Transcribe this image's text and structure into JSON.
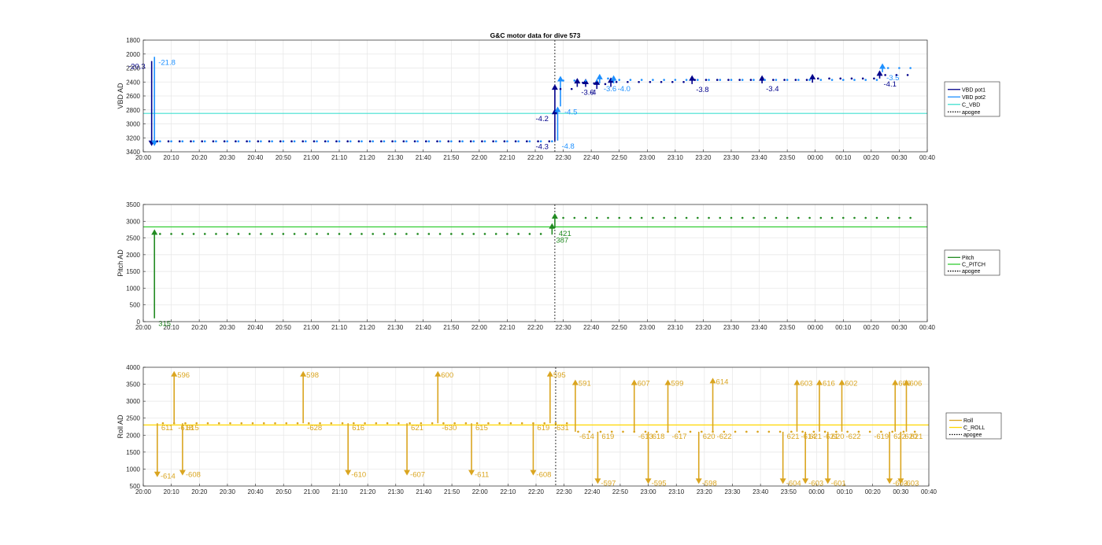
{
  "chart_data": [
    {
      "type": "line",
      "title": "G&C motor data for dive 573",
      "ylabel": "VBD AD",
      "xlim": [
        "20:00",
        "00:40"
      ],
      "ylim": [
        1800,
        3400
      ],
      "y_reversed": true,
      "xticks": [
        "20:00",
        "20:10",
        "20:20",
        "20:30",
        "20:40",
        "20:50",
        "21:00",
        "21:10",
        "21:20",
        "21:30",
        "21:40",
        "21:50",
        "22:00",
        "22:10",
        "22:20",
        "22:30",
        "22:40",
        "22:50",
        "23:00",
        "23:10",
        "23:20",
        "23:30",
        "23:40",
        "23:50",
        "00:00",
        "00:10",
        "00:20",
        "00:30",
        "00:40"
      ],
      "yticks": [
        1800,
        2000,
        2200,
        2400,
        2600,
        2800,
        3000,
        3200,
        3400
      ],
      "grid": true,
      "legend_position": "right",
      "apogee": "22:27",
      "series": [
        {
          "name": "VBD pot1",
          "color": "#00008b",
          "moves": [
            {
              "t": "20:03",
              "from": 2100,
              "to": 3250,
              "label": "-20.3",
              "label_side": "left"
            },
            {
              "t": "22:27",
              "from": 3250,
              "to": 2850,
              "label": "-4.3",
              "label_side": "left"
            },
            {
              "t": "22:27",
              "from": 2850,
              "to": 2500,
              "label": "-4.2",
              "label_side": "left"
            },
            {
              "t": "22:35",
              "from": 2470,
              "to": 2410,
              "label": "-3.6",
              "label_side": "right"
            },
            {
              "t": "22:38",
              "from": 2470,
              "to": 2420,
              "label": "-4",
              "label_side": "right"
            },
            {
              "t": "22:42",
              "from": 2500,
              "to": 2430,
              "label": "",
              "label_side": "right"
            },
            {
              "t": "22:47",
              "from": 2470,
              "to": 2400,
              "label": "",
              "label_side": "right"
            },
            {
              "t": "23:16",
              "from": 2430,
              "to": 2370,
              "label": "-3.8",
              "label_side": "right"
            },
            {
              "t": "23:41",
              "from": 2420,
              "to": 2370,
              "label": "-3.4",
              "label_side": "right"
            },
            {
              "t": "23:59",
              "from": 2410,
              "to": 2350,
              "label": "",
              "label_side": "right"
            },
            {
              "t": "00:23",
              "from": 2350,
              "to": 2300,
              "label": "-4.1",
              "label_side": "right"
            }
          ]
        },
        {
          "name": "VBD pot2",
          "color": "#1e90ff",
          "moves": [
            {
              "t": "20:04",
              "from": 2040,
              "to": 3250,
              "label": "-21.8",
              "label_side": "right"
            },
            {
              "t": "22:28",
              "from": 3240,
              "to": 2820,
              "label": "-4.8",
              "label_side": "right"
            },
            {
              "t": "22:29",
              "from": 2750,
              "to": 2380,
              "label": "-4.5",
              "label_side": "right"
            },
            {
              "t": "22:43",
              "from": 2420,
              "to": 2350,
              "label": "-3.6",
              "label_side": "right"
            },
            {
              "t": "22:48",
              "from": 2420,
              "to": 2370,
              "label": "-4.0",
              "label_side": "right"
            },
            {
              "t": "00:24",
              "from": 2260,
              "to": 2200,
              "label": "-3.5",
              "label_side": "right"
            }
          ]
        },
        {
          "name": "C_VBD",
          "color": "#40e0d0",
          "value": 2850
        },
        {
          "name": "apogee",
          "color": "#000000",
          "style": "dotted"
        }
      ]
    },
    {
      "type": "line",
      "ylabel": "Pitch AD",
      "xlim": [
        "20:00",
        "00:40"
      ],
      "ylim": [
        0,
        3500
      ],
      "xticks": [
        "20:00",
        "20:10",
        "20:20",
        "20:30",
        "20:40",
        "20:50",
        "21:00",
        "21:10",
        "21:20",
        "21:30",
        "21:40",
        "21:50",
        "22:00",
        "22:10",
        "22:20",
        "22:30",
        "22:40",
        "22:50",
        "23:00",
        "23:10",
        "23:20",
        "23:30",
        "23:40",
        "23:50",
        "00:00",
        "00:10",
        "00:20",
        "00:30",
        "00:40"
      ],
      "yticks": [
        0,
        500,
        1000,
        1500,
        2000,
        2500,
        3000,
        3500
      ],
      "grid": true,
      "legend_position": "right",
      "apogee": "22:27",
      "series": [
        {
          "name": "Pitch",
          "color": "#228b22",
          "moves": [
            {
              "t": "20:04",
              "from": 100,
              "to": 2620,
              "label": "315",
              "label_side": "right"
            },
            {
              "t": "22:26",
              "from": 2600,
              "to": 2800,
              "label": "387",
              "label_side": "right"
            },
            {
              "t": "22:27",
              "from": 2800,
              "to": 3100,
              "label": "421",
              "label_side": "right"
            }
          ]
        },
        {
          "name": "C_PITCH",
          "color": "#32cd32",
          "value": 2830
        },
        {
          "name": "apogee",
          "color": "#000000",
          "style": "dotted"
        }
      ]
    },
    {
      "type": "line",
      "ylabel": "Roll AD",
      "xlim": [
        "20:00",
        "00:40"
      ],
      "ylim": [
        500,
        4000
      ],
      "xticks": [
        "20:00",
        "20:10",
        "20:20",
        "20:30",
        "20:40",
        "20:50",
        "21:00",
        "21:10",
        "21:20",
        "21:30",
        "21:40",
        "21:50",
        "22:00",
        "22:10",
        "22:20",
        "22:30",
        "22:40",
        "22:50",
        "23:00",
        "23:10",
        "23:20",
        "23:30",
        "23:40",
        "23:50",
        "00:00",
        "00:10",
        "00:20",
        "00:30",
        "00:40"
      ],
      "yticks": [
        500,
        1000,
        1500,
        2000,
        2500,
        3000,
        3500,
        4000
      ],
      "grid": true,
      "legend_position": "right",
      "apogee": "22:27",
      "series": [
        {
          "name": "Roll",
          "color": "#daa520",
          "moves": [
            {
              "t": "20:05",
              "from": 2350,
              "to": 900,
              "label": "611",
              "label_side": "right",
              "end_label": "-614"
            },
            {
              "t": "20:11",
              "from": 2350,
              "to": 3750,
              "label": "-618",
              "label_side": "right",
              "end_label": "596"
            },
            {
              "t": "20:14",
              "from": 2350,
              "to": 950,
              "label": "615",
              "label_side": "right",
              "end_label": "-608"
            },
            {
              "t": "20:57",
              "from": 2350,
              "to": 3750,
              "label": "-628",
              "label_side": "right",
              "end_label": "598"
            },
            {
              "t": "21:13",
              "from": 2350,
              "to": 950,
              "label": "616",
              "label_side": "right",
              "end_label": "-610"
            },
            {
              "t": "21:34",
              "from": 2350,
              "to": 950,
              "label": "621",
              "label_side": "right",
              "end_label": "-607"
            },
            {
              "t": "21:45",
              "from": 2350,
              "to": 3750,
              "label": "-630",
              "label_side": "right",
              "end_label": "600"
            },
            {
              "t": "21:57",
              "from": 2350,
              "to": 950,
              "label": "615",
              "label_side": "right",
              "end_label": "-611"
            },
            {
              "t": "22:19",
              "from": 2350,
              "to": 950,
              "label": "619",
              "label_side": "right",
              "end_label": "-608"
            },
            {
              "t": "22:25",
              "from": 2350,
              "to": 3750,
              "label": "-631",
              "label_side": "right",
              "end_label": "595"
            },
            {
              "t": "22:34",
              "from": 2100,
              "to": 3500,
              "label": "-614",
              "label_side": "right",
              "end_label": "591"
            },
            {
              "t": "22:42",
              "from": 2100,
              "to": 700,
              "label": "619",
              "label_side": "right",
              "end_label": "-597"
            },
            {
              "t": "22:55",
              "from": 2100,
              "to": 3500,
              "label": "-613",
              "label_side": "right",
              "end_label": "607"
            },
            {
              "t": "23:00",
              "from": 2100,
              "to": 700,
              "label": "618",
              "label_side": "right",
              "end_label": "-595"
            },
            {
              "t": "23:07",
              "from": 2100,
              "to": 3500,
              "label": "-617",
              "label_side": "right",
              "end_label": "599"
            },
            {
              "t": "23:18",
              "from": 2100,
              "to": 700,
              "label": "620",
              "label_side": "right",
              "end_label": "-598"
            },
            {
              "t": "23:23",
              "from": 2100,
              "to": 3550,
              "label": "-622",
              "label_side": "right",
              "end_label": "614"
            },
            {
              "t": "23:48",
              "from": 2100,
              "to": 700,
              "label": "621",
              "label_side": "right",
              "end_label": "-604"
            },
            {
              "t": "23:53",
              "from": 2100,
              "to": 3500,
              "label": "-614",
              "label_side": "right",
              "end_label": "603"
            },
            {
              "t": "23:56",
              "from": 2100,
              "to": 700,
              "label": "621",
              "label_side": "right",
              "end_label": "-603"
            },
            {
              "t": "00:01",
              "from": 2100,
              "to": 3500,
              "label": "-621",
              "label_side": "right",
              "end_label": "616"
            },
            {
              "t": "00:04",
              "from": 2100,
              "to": 700,
              "label": "620",
              "label_side": "right",
              "end_label": "-601"
            },
            {
              "t": "00:09",
              "from": 2100,
              "to": 3500,
              "label": "-622",
              "label_side": "right",
              "end_label": "602"
            },
            {
              "t": "00:26",
              "from": 2100,
              "to": 700,
              "label": "622",
              "label_side": "right",
              "end_label": "-603"
            },
            {
              "t": "00:28",
              "from": 2100,
              "to": 3500,
              "label": "-619",
              "label_side": "left",
              "end_label": "606"
            },
            {
              "t": "00:30",
              "from": 2100,
              "to": 700,
              "label": "620",
              "label_side": "right",
              "end_label": "-603"
            },
            {
              "t": "00:32",
              "from": 2100,
              "to": 3500,
              "label": "621",
              "label_side": "right",
              "end_label": "606"
            }
          ]
        },
        {
          "name": "C_ROLL",
          "color": "#ffd700",
          "value": 2300
        },
        {
          "name": "apogee",
          "color": "#000000",
          "style": "dotted"
        }
      ]
    }
  ]
}
